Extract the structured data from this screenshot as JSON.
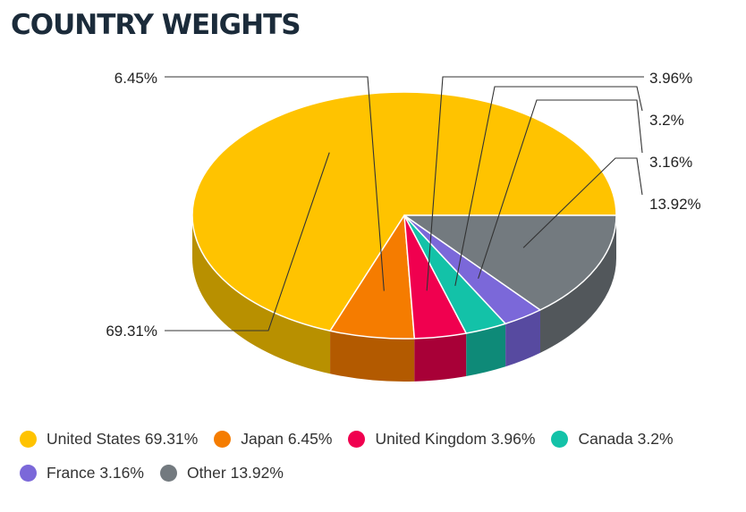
{
  "chart_data": {
    "type": "pie",
    "title": "COUNTRY WEIGHTS",
    "style": "3d",
    "categories": [
      "United States",
      "Japan",
      "United Kingdom",
      "Canada",
      "France",
      "Other"
    ],
    "values": [
      69.31,
      6.45,
      3.96,
      3.2,
      3.16,
      13.92
    ],
    "data_labels": [
      "69.31%",
      "6.45%",
      "3.96%",
      "3.2%",
      "3.16%",
      "13.92%"
    ],
    "colors": [
      "#FFC300",
      "#F57C00",
      "#F0004F",
      "#13C2A8",
      "#7B68D9",
      "#737A7F"
    ],
    "side_colors": [
      "#B89000",
      "#B35A00",
      "#A80037",
      "#0E8A78",
      "#574AA0",
      "#52575B"
    ],
    "legend": {
      "placement": "bottom",
      "entries": [
        "United States 69.31%",
        "Japan 6.45%",
        "United Kingdom 3.96%",
        "Canada 3.2%",
        "France 3.16%",
        "Other 13.92%"
      ]
    }
  }
}
